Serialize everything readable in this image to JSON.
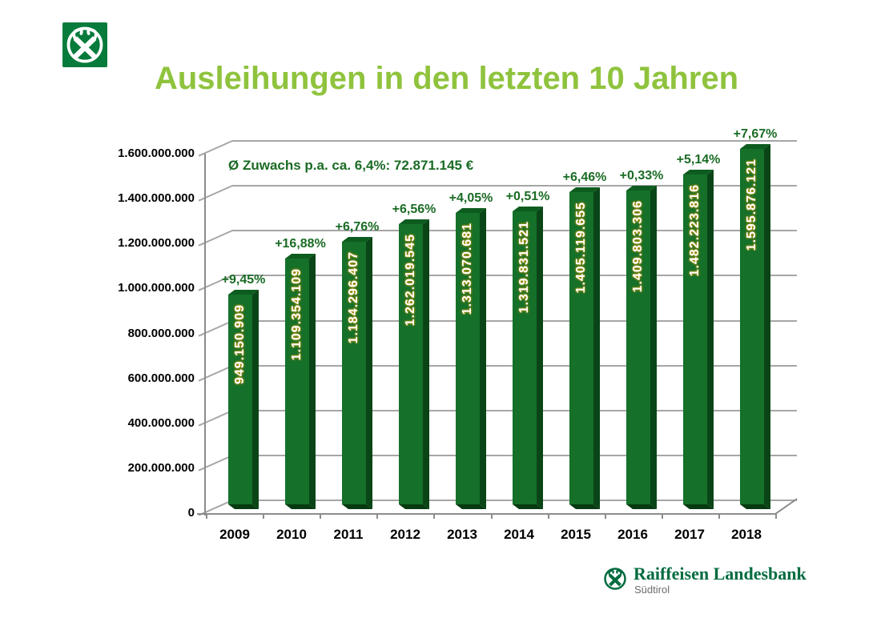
{
  "header": {
    "title": "Ausleihungen in den letzten 10 Jahren",
    "title_color": "#8FC33D"
  },
  "logo_top": {
    "icon": "raiffeisen-gable-cross-icon",
    "bg_color": "#067B3C"
  },
  "footer": {
    "icon": "raiffeisen-gable-cross-icon",
    "line1": "Raiffeisen Landesbank",
    "line2": "Südtirol",
    "color": "#006B3F"
  },
  "chart_data": {
    "type": "bar",
    "title": "Ausleihungen in den letzten 10 Jahren",
    "annotation": "Ø Zuwachs p.a. ca. 6,4%: 72.871.145 €",
    "categories": [
      "2009",
      "2010",
      "2011",
      "2012",
      "2013",
      "2014",
      "2015",
      "2016",
      "2017",
      "2018"
    ],
    "values": [
      949150909,
      1109354109,
      1184296407,
      1262019545,
      1313070681,
      1319831521,
      1405119655,
      1409803306,
      1482223816,
      1595876121
    ],
    "value_labels": [
      "949.150.909",
      "1.109.354.109",
      "1.184.296.407",
      "1.262.019.545",
      "1.313.070.681",
      "1.319.831.521",
      "1.405.119.655",
      "1.409.803.306",
      "1.482.223.816",
      "1.595.876.121"
    ],
    "pct_labels": [
      "+9,45%",
      "+16,88%",
      "+6,76%",
      "+6,56%",
      "+4,05%",
      "+0,51%",
      "+6,46%",
      "+0,33%",
      "+5,14%",
      "+7,67%"
    ],
    "y_ticks": [
      "1.600.000.000",
      "1.400.000.000",
      "1.200.000.000",
      "1.000.000.000",
      "800.000.000",
      "600.000.000",
      "400.000.000",
      "200.000.000",
      "0"
    ],
    "ylim": [
      0,
      1600000000
    ],
    "grid": true,
    "legend": "none",
    "style_3d": true,
    "bar_color_front": "#15702A",
    "bar_color_side": "#0A4517",
    "bar_color_top": "#0D5C1F",
    "value_label_color": "#FFFFFF",
    "pct_label_color": "#1A6B24",
    "gridline_color": "#A6A6A6"
  }
}
